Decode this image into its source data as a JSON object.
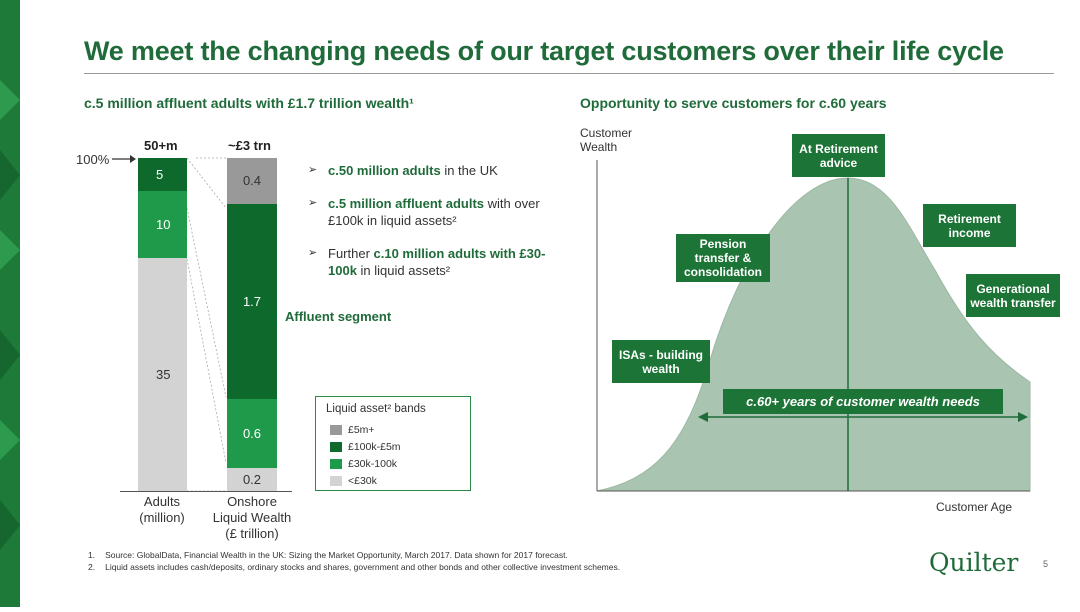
{
  "slide": {
    "title": "We meet the changing needs of our target customers over their life cycle",
    "page_number": "5",
    "logo_text": "Quilter",
    "colors": {
      "brand_green": "#1e7a38",
      "dark_green": "#0e6a2c",
      "mid_green": "#1e9a4a",
      "grey": "#999999",
      "light_grey": "#d3d3d3",
      "curve_fill": "#a9c4b0"
    }
  },
  "left": {
    "section_title": "c.5 million affluent adults with £1.7 trillion wealth¹",
    "pct_label": "100%",
    "affluent_label": "Affluent segment",
    "bullets": [
      {
        "bold": "c.50 million adults",
        "rest": " in the UK"
      },
      {
        "bold": "c.5 million affluent adults",
        "rest": " with over £100k in liquid assets²"
      },
      {
        "pre": "Further ",
        "bold": "c.10 million adults with £30-100k",
        "rest": " in liquid assets²"
      }
    ],
    "legend": {
      "title": "Liquid asset² bands",
      "items": [
        {
          "label": "£5m+",
          "color": "#999999"
        },
        {
          "label": "£100k-£5m",
          "color": "#0e6a2c"
        },
        {
          "label": "£30k-100k",
          "color": "#1e9a4a"
        },
        {
          "label": "<£30k",
          "color": "#d3d3d3"
        }
      ]
    }
  },
  "right": {
    "section_title": "Opportunity to serve customers for c.60 years",
    "y_axis_label": [
      "Customer",
      "Wealth"
    ],
    "x_axis_label": "Customer Age",
    "span_label": "c.60+ years of customer wealth needs",
    "stages": [
      {
        "lines": [
          "ISAs - building",
          "wealth"
        ]
      },
      {
        "lines": [
          "Pension",
          "transfer &",
          "consolidation"
        ]
      },
      {
        "lines": [
          "At Retirement",
          "advice"
        ]
      },
      {
        "lines": [
          "Retirement",
          "income"
        ]
      },
      {
        "lines": [
          "Generational",
          "wealth transfer"
        ]
      }
    ]
  },
  "chart_data": [
    {
      "type": "bar",
      "stacked": true,
      "categories": [
        "Adults (million)",
        "Onshore Liquid Wealth (£ trillion)"
      ],
      "category_lines": [
        [
          "Adults",
          "(million)"
        ],
        [
          "Onshore",
          "Liquid Wealth",
          "(£ trillion)"
        ]
      ],
      "totals": [
        "50+m",
        "~£3 trn"
      ],
      "series": [
        {
          "name": "<£30k",
          "values": [
            35,
            0.2
          ],
          "labels": [
            "35",
            "0.2"
          ]
        },
        {
          "name": "£30k-100k",
          "values": [
            10,
            0.6
          ],
          "labels": [
            "10",
            "0.6"
          ]
        },
        {
          "name": "£100k-£5m",
          "values": [
            5,
            1.7
          ],
          "labels": [
            "5",
            "1.7"
          ]
        },
        {
          "name": "£5m+",
          "values": [
            0,
            0.4
          ],
          "labels": [
            "",
            "0.4"
          ]
        }
      ]
    },
    {
      "type": "area",
      "xlabel": "Customer Age",
      "ylabel": "Customer Wealth",
      "shape": "bell curve peaking at retirement"
    }
  ],
  "footnotes": [
    {
      "num": "1.",
      "text": "Source: GlobalData, Financial Wealth in the UK: Sizing the Market Opportunity, March 2017. Data shown for 2017 forecast."
    },
    {
      "num": "2.",
      "text": "Liquid assets includes cash/deposits, ordinary stocks and shares, government and other bonds and other collective investment schemes."
    }
  ]
}
